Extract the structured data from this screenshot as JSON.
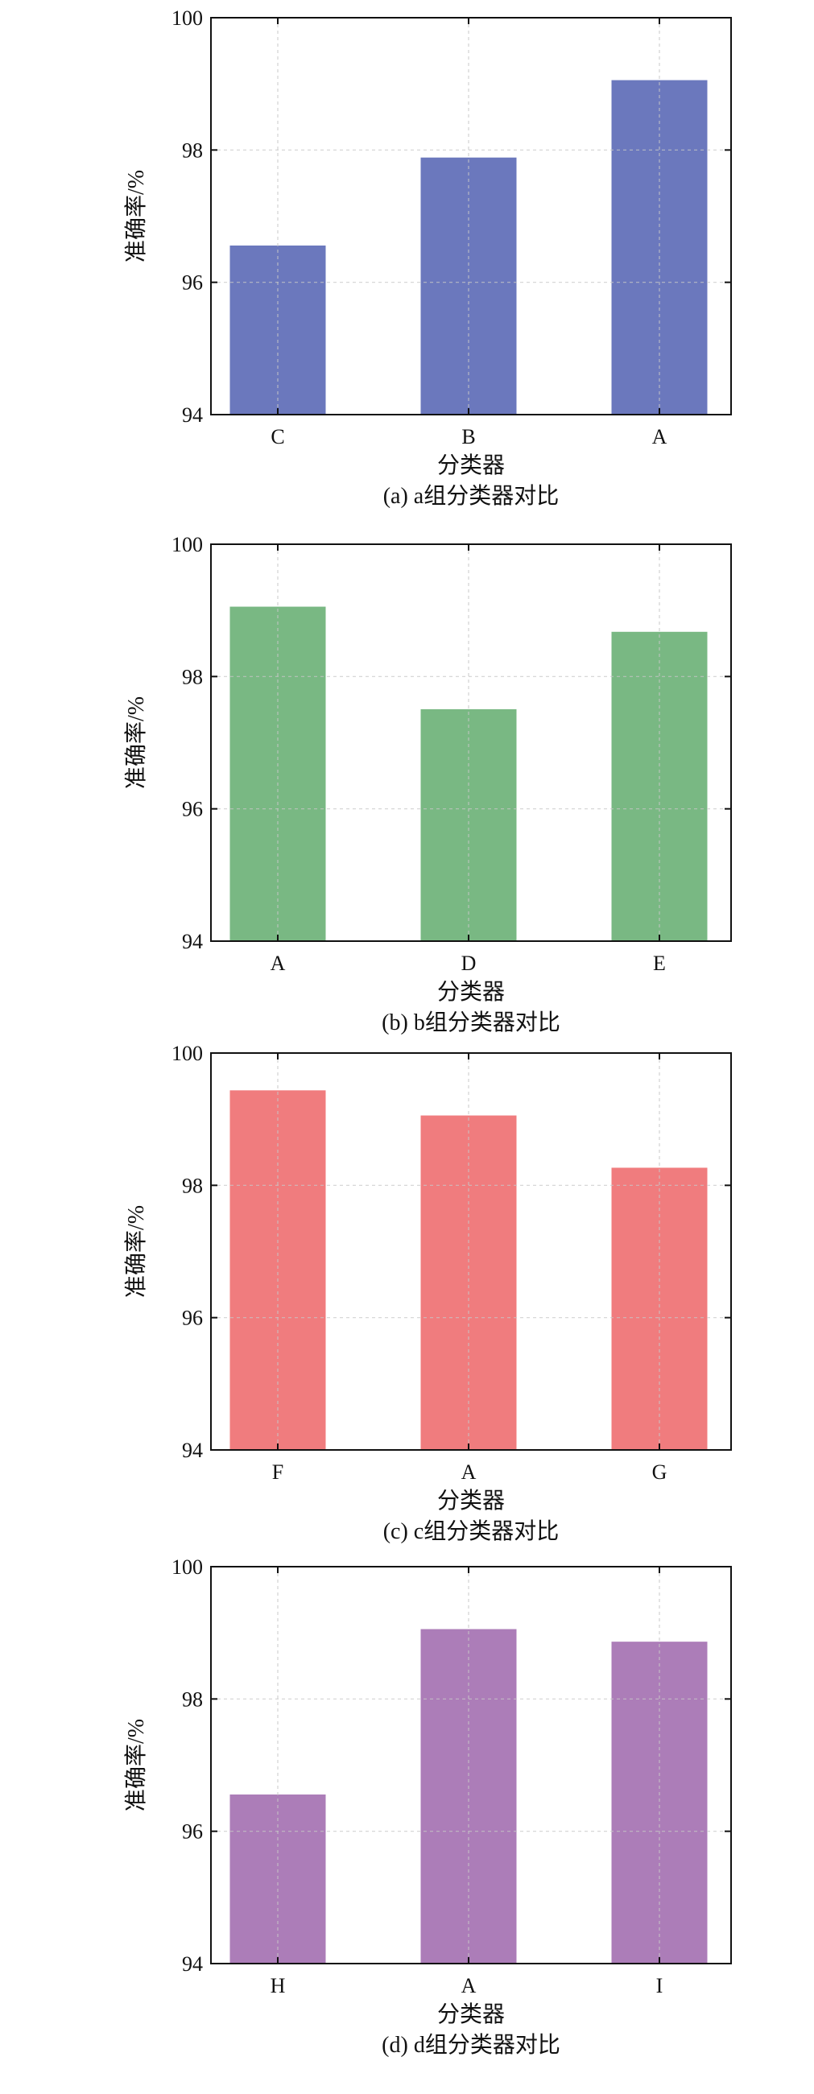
{
  "chart_data": [
    {
      "type": "bar",
      "caption": "(a) a组分类器对比",
      "categories": [
        "C",
        "B",
        "A"
      ],
      "values": [
        96.55,
        97.88,
        99.05
      ],
      "xlabel": "分类器",
      "ylabel": "准确率/%",
      "ylim": [
        94,
        100
      ],
      "yticks": [
        94,
        96,
        98,
        100
      ],
      "grid": true,
      "color": "#6b78bd"
    },
    {
      "type": "bar",
      "caption": "(b) b组分类器对比",
      "categories": [
        "A",
        "D",
        "E"
      ],
      "values": [
        99.05,
        97.5,
        98.67
      ],
      "xlabel": "分类器",
      "ylabel": "准确率/%",
      "ylim": [
        94,
        100
      ],
      "yticks": [
        94,
        96,
        98,
        100
      ],
      "grid": true,
      "color": "#79b883"
    },
    {
      "type": "bar",
      "caption": "(c) c组分类器对比",
      "categories": [
        "F",
        "A",
        "G"
      ],
      "values": [
        99.43,
        99.05,
        98.26
      ],
      "xlabel": "分类器",
      "ylabel": "准确率/%",
      "ylim": [
        94,
        100
      ],
      "yticks": [
        94,
        96,
        98,
        100
      ],
      "grid": true,
      "color": "#f07c7e"
    },
    {
      "type": "bar",
      "caption": "(d) d组分类器对比",
      "categories": [
        "H",
        "A",
        "I"
      ],
      "values": [
        96.55,
        99.05,
        98.86
      ],
      "xlabel": "分类器",
      "ylabel": "准确率/%",
      "ylim": [
        94,
        100
      ],
      "yticks": [
        94,
        96,
        98,
        100
      ],
      "grid": true,
      "color": "#ac7db8"
    }
  ]
}
